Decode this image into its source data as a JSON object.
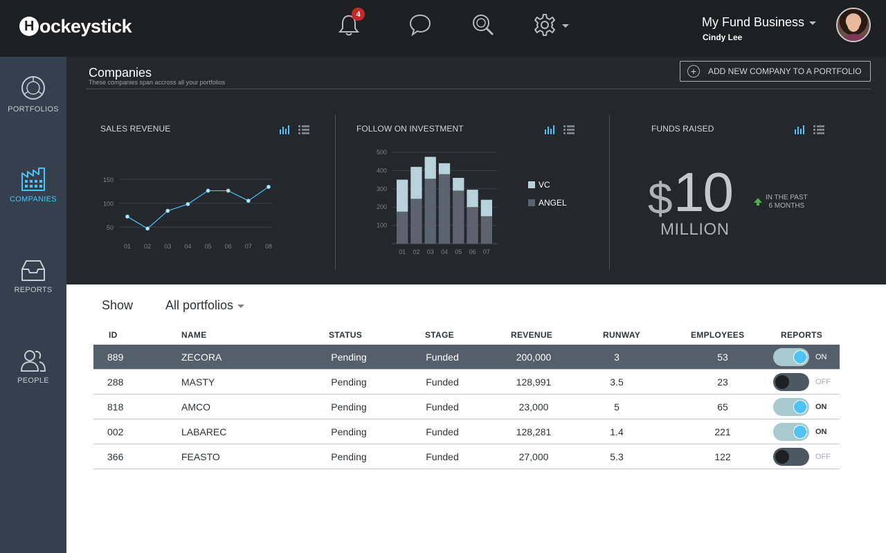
{
  "header": {
    "logo": "Hockeystick",
    "notification_count": "4",
    "account_name": "My Fund Business",
    "user_name": "Cindy Lee",
    "icons": [
      "bell-icon",
      "chat-icon",
      "search-icon",
      "gear-icon"
    ]
  },
  "sidebar": {
    "items": [
      {
        "label": "PORTFOLIOS",
        "icon": "pie-chart-icon",
        "active": false
      },
      {
        "label": "COMPANIES",
        "icon": "factory-icon",
        "active": true
      },
      {
        "label": "REPORTS",
        "icon": "inbox-icon",
        "active": false
      },
      {
        "label": "PEOPLE",
        "icon": "people-icon",
        "active": false
      }
    ]
  },
  "dashboard": {
    "title": "Companies",
    "subtitle": "These companies span accross all your portfolios",
    "add_button": "ADD NEW COMPANY TO A PORTFOLIO",
    "panels": {
      "sales": "SALES REVENUE",
      "follow": "FOLLOW ON INVESTMENT",
      "funds": "FUNDS RAISED"
    },
    "funds": {
      "currency": "$",
      "value": "10",
      "unit": "MILLION",
      "note_line1": "IN THE PAST",
      "note_line2": "6 MONTHS"
    },
    "legend": {
      "vc": "VC",
      "angel": "ANGEL"
    }
  },
  "chart_data": [
    {
      "type": "line",
      "title": "SALES REVENUE",
      "categories": [
        "01",
        "02",
        "03",
        "04",
        "05",
        "06",
        "07",
        "08"
      ],
      "values": [
        72,
        47,
        84,
        98,
        126,
        126,
        105,
        134
      ],
      "yticks": [
        "50",
        "100",
        "150"
      ],
      "ylim": [
        30,
        160
      ],
      "color": "#4fc3f7"
    },
    {
      "type": "bar",
      "title": "FOLLOW ON INVESTMENT",
      "stacked": true,
      "categories": [
        "01",
        "02",
        "03",
        "04",
        "05",
        "06",
        "07"
      ],
      "yticks": [
        "100",
        "200",
        "300",
        "400",
        "500"
      ],
      "ylim": [
        0,
        500
      ],
      "series": [
        {
          "name": "ANGEL",
          "values": [
            175,
            245,
            355,
            380,
            290,
            200,
            150
          ],
          "color": "#5b646d"
        },
        {
          "name": "VC",
          "values": [
            175,
            175,
            120,
            60,
            70,
            95,
            90
          ],
          "color": "#b7d2d8"
        }
      ]
    }
  ],
  "filter": {
    "show_label": "Show",
    "selected": "All portfolios"
  },
  "table": {
    "headers": [
      "ID",
      "NAME",
      "STATUS",
      "STAGE",
      "REVENUE",
      "RUNWAY",
      "EMPLOYEES",
      "REPORTS"
    ],
    "rows": [
      {
        "id": "889",
        "name": "ZECORA",
        "status": "Pending",
        "stage": "Funded",
        "revenue": "200,000",
        "runway": "3",
        "employees": "53",
        "reports": "ON",
        "selected": true
      },
      {
        "id": "288",
        "name": "MASTY",
        "status": "Pending",
        "stage": "Funded",
        "revenue": "128,991",
        "runway": "3.5",
        "employees": "23",
        "reports": "OFF",
        "selected": false
      },
      {
        "id": "818",
        "name": "AMCO",
        "status": "Pending",
        "stage": "Funded",
        "revenue": "23,000",
        "runway": "5",
        "employees": "65",
        "reports": "ON",
        "selected": false
      },
      {
        "id": "002",
        "name": "LABAREC",
        "status": "Pending",
        "stage": "Funded",
        "revenue": "128,281",
        "runway": "1.4",
        "employees": "221",
        "reports": "ON",
        "selected": false
      },
      {
        "id": "366",
        "name": "FEASTO",
        "status": "Pending",
        "stage": "Funded",
        "revenue": "27,000",
        "runway": "5.3",
        "employees": "122",
        "reports": "OFF",
        "selected": false
      }
    ]
  },
  "colors": {
    "accent": "#4fc3f7",
    "topbar": "#1d1f21",
    "sidebar": "#34404d",
    "dashboard": "#24282c",
    "selected_row": "#545f69"
  }
}
